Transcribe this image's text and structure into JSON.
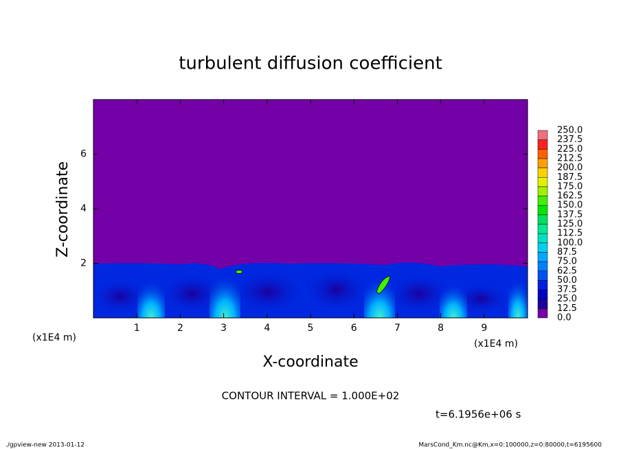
{
  "chart_data": {
    "type": "contour",
    "title": "turbulent diffusion coefficient",
    "xlabel": "X-coordinate",
    "ylabel": "Z-coordinate",
    "x_unit_label": "(x1E4 m)",
    "x_unit_label_right": "(x1E4 m)",
    "xlim": [
      0,
      10
    ],
    "ylim": [
      0,
      8
    ],
    "xticks": [
      1,
      2,
      3,
      4,
      5,
      6,
      7,
      8,
      9
    ],
    "yticks": [
      2,
      4,
      6
    ],
    "colorbar": {
      "levels": [
        {
          "value": 0,
          "label": "0.0"
        },
        {
          "value": 12.5,
          "label": "12.5"
        },
        {
          "value": 25,
          "label": "25.0"
        },
        {
          "value": 37.5,
          "label": "37.5"
        },
        {
          "value": 50,
          "label": "50.0"
        },
        {
          "value": 62.5,
          "label": "62.5"
        },
        {
          "value": 75,
          "label": "75.0"
        },
        {
          "value": 87.5,
          "label": "87.5"
        },
        {
          "value": 100,
          "label": "100.0"
        },
        {
          "value": 112.5,
          "label": "112.5"
        },
        {
          "value": 125,
          "label": "125.0"
        },
        {
          "value": 137.5,
          "label": "137.5"
        },
        {
          "value": 150,
          "label": "150.0"
        },
        {
          "value": 162.5,
          "label": "162.5"
        },
        {
          "value": 175,
          "label": "175.0"
        },
        {
          "value": 187.5,
          "label": "187.5"
        },
        {
          "value": 200,
          "label": "200.0"
        },
        {
          "value": 212.5,
          "label": "212.5"
        },
        {
          "value": 225,
          "label": "225.0"
        },
        {
          "value": 237.5,
          "label": "237.5"
        },
        {
          "value": 250,
          "label": "250.0"
        }
      ],
      "colors": [
        "#7400a8",
        "#1c00a0",
        "#0000c8",
        "#0020e0",
        "#0050f0",
        "#0080ff",
        "#00a8ff",
        "#00d0f0",
        "#00e0c0",
        "#00e890",
        "#00e060",
        "#00e800",
        "#40f000",
        "#a0f000",
        "#e0f000",
        "#ffd000",
        "#ffa000",
        "#ff6000",
        "#ff2020",
        "#f07080"
      ]
    },
    "contour_interval": "CONTOUR INTERVAL = 1.000E+02",
    "time_label": "t=6.1956e+06 s",
    "footer_left": "./gpview-new  2013-01-12",
    "footer_right": "MarsCond_Km.nc@Km,x=0:100000,z=0:80000,t=6195600"
  }
}
